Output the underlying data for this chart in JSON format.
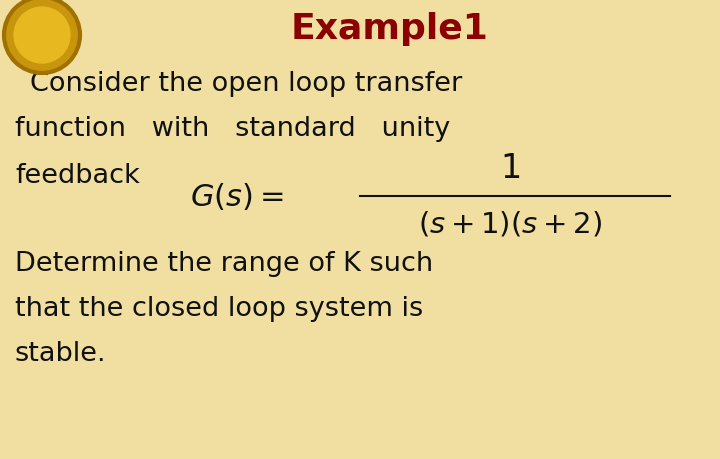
{
  "background_color": "#f0dfa0",
  "title_text": "Example1",
  "title_color": "#8B0000",
  "title_fontsize": 26,
  "body_color": "#111111",
  "body_fontsize": 19.5,
  "formula_fontsize": 21,
  "line1": "Consider the open loop transfer",
  "line2": "function   with   standard   unity",
  "line3": "feedback",
  "line4": "Determine the range of K such",
  "line5": "that the closed loop system is",
  "line6": "stable.",
  "fig_width": 7.2,
  "fig_height": 4.59,
  "dpi": 100
}
